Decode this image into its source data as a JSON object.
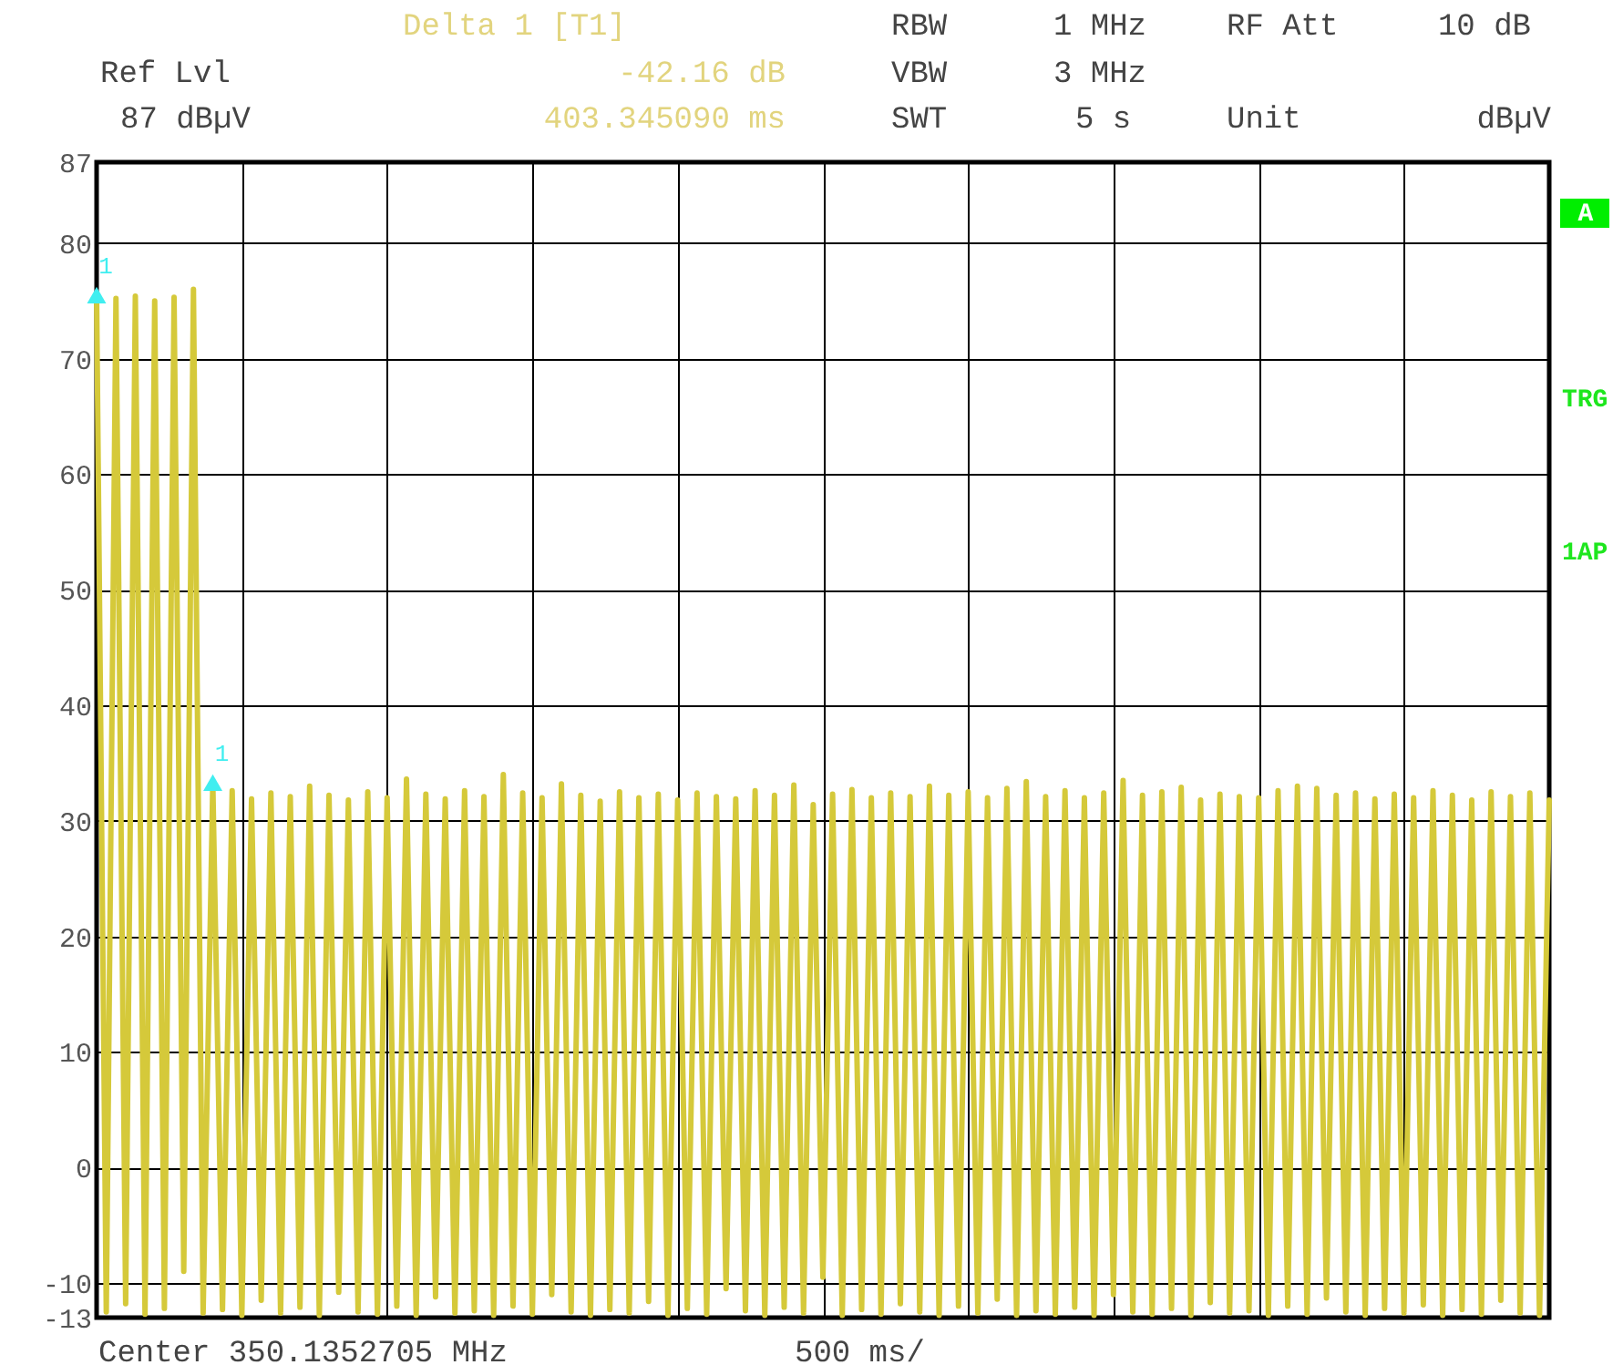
{
  "chart_data": {
    "type": "line",
    "categories": [
      null,
      null,
      null,
      null,
      null,
      null,
      null,
      null,
      null,
      null,
      null,
      null,
      null,
      null,
      null,
      null,
      null,
      null,
      null,
      null,
      null,
      null,
      null,
      null,
      null,
      null,
      null,
      null,
      null,
      null,
      null,
      null,
      null,
      null,
      null,
      null,
      null,
      null,
      null,
      null,
      null,
      null,
      null,
      null,
      null,
      null,
      null,
      null,
      null,
      null,
      null,
      null,
      null,
      null,
      null,
      null,
      null,
      null,
      null,
      null,
      null,
      null,
      null,
      null,
      null,
      null,
      null,
      null,
      null,
      null,
      null,
      null,
      null,
      null,
      null,
      null,
      null,
      null,
      null,
      null,
      null,
      null,
      null,
      null,
      null,
      null,
      null,
      null,
      null,
      null,
      null,
      null,
      null,
      null,
      null,
      null,
      null,
      null,
      null,
      null,
      null,
      null,
      null,
      null,
      null,
      null,
      null,
      null,
      null,
      null,
      null,
      null,
      null,
      null,
      null,
      null,
      null,
      null,
      null,
      null,
      null,
      null,
      null,
      null,
      null,
      null,
      null,
      null,
      null,
      null,
      null,
      null,
      null,
      null,
      null,
      null,
      null,
      null,
      null,
      null,
      null,
      null,
      null,
      null,
      null,
      null,
      null,
      null,
      null,
      null,
      null
    ],
    "ylim": [
      -13,
      87
    ],
    "yticks": [
      87,
      80,
      70,
      60,
      50,
      40,
      30,
      20,
      10,
      0,
      -10,
      -13
    ],
    "grid": true,
    "tick_labels": "y",
    "annotations": [
      "Delta 1 [T1]",
      "RBW",
      "1 MHz",
      "RF Att",
      "10 dB",
      "Ref Lvl",
      "-42.16 dB",
      "VBW",
      "3 MHz",
      "87 dBµV",
      "403.345090 ms",
      "SWT",
      "5 s",
      "Unit",
      "dBµV",
      "A",
      "TRG",
      "1AP",
      "Center 350.1352705 MHz",
      "500 ms/"
    ],
    "series": [
      {
        "color": "#d5c93a",
        "line_style": "solid",
        "values": [
          75.5,
          -12.5,
          75.2,
          -11.8,
          75.4,
          -12.7,
          75.0,
          -12.2,
          75.3,
          -9.0,
          76.0,
          -12.6,
          33.3,
          -12.3,
          32.6,
          -12.8,
          31.9,
          -11.5,
          32.4,
          -12.6,
          32.1,
          -12.1,
          33.0,
          -12.8,
          32.2,
          -10.8,
          31.8,
          -12.5,
          32.5,
          -12.7,
          32.0,
          -12.0,
          33.6,
          -12.8,
          32.3,
          -11.2,
          31.9,
          -12.6,
          32.6,
          -12.4,
          32.1,
          -12.8,
          34.0,
          -12.0,
          32.4,
          -12.7,
          32.0,
          -11.0,
          33.2,
          -12.5,
          32.2,
          -12.8,
          31.7,
          -12.3,
          32.5,
          -12.6,
          32.0,
          -11.6,
          32.3,
          -12.8,
          31.8,
          -12.2,
          32.4,
          -12.7,
          32.1,
          -10.5,
          31.9,
          -12.4,
          32.6,
          -12.8,
          32.2,
          -12.1,
          33.1,
          -12.6,
          31.4,
          -9.5,
          32.3,
          -12.8,
          32.7,
          -12.3,
          32.0,
          -12.7,
          32.4,
          -11.8,
          32.1,
          -12.5,
          33.0,
          -12.8,
          32.2,
          -12.0,
          32.5,
          -12.6,
          32.0,
          -11.4,
          32.8,
          -12.8,
          33.4,
          -12.4,
          32.1,
          -12.7,
          32.6,
          -12.1,
          32.0,
          -12.8,
          32.4,
          -11.0,
          33.5,
          -12.5,
          32.2,
          -12.7,
          32.5,
          -12.2,
          32.9,
          -12.8,
          31.8,
          -11.7,
          32.3,
          -12.6,
          32.1,
          -12.4,
          32.0,
          -12.8,
          32.6,
          -12.0,
          33.0,
          -12.7,
          32.8,
          -11.3,
          32.2,
          -12.5,
          32.4,
          -12.8,
          31.9,
          -12.2,
          32.3,
          -12.6,
          32.0,
          -11.9,
          32.6,
          -12.8,
          32.2,
          -12.3,
          31.8,
          -12.7,
          32.5,
          -11.5,
          32.1,
          -12.6,
          32.4,
          -12.8,
          31.8
        ]
      },
      {
        "type": "scatter",
        "name": "1",
        "color": "#40eef0",
        "marker": "triangle",
        "values": [
          75.5,
          null,
          null,
          null,
          null,
          null,
          null,
          null,
          null,
          null,
          null,
          null,
          null,
          null,
          null,
          null,
          null,
          null,
          null,
          null,
          null,
          null,
          null,
          null,
          null,
          null,
          null,
          null,
          null,
          null,
          null,
          null,
          null,
          null,
          null,
          null,
          null,
          null,
          null,
          null,
          null,
          null,
          null,
          null,
          null,
          null,
          null,
          null,
          null,
          null,
          null,
          null,
          null,
          null,
          null,
          null,
          null,
          null,
          null,
          null,
          null,
          null,
          null,
          null,
          null,
          null,
          null,
          null,
          null,
          null,
          null,
          null,
          null,
          null,
          null,
          null,
          null,
          null,
          null,
          null,
          null,
          null,
          null,
          null,
          null,
          null,
          null,
          null,
          null,
          null,
          null,
          null,
          null,
          null,
          null,
          null,
          null,
          null,
          null,
          null,
          null,
          null,
          null,
          null,
          null,
          null,
          null,
          null,
          null,
          null,
          null,
          null,
          null,
          null,
          null,
          null,
          null,
          null,
          null,
          null,
          null,
          null,
          null,
          null,
          null,
          null,
          null,
          null,
          null,
          null,
          null,
          null,
          null,
          null,
          null,
          null,
          null,
          null,
          null,
          null,
          null,
          null,
          null,
          null,
          null,
          null,
          null,
          null,
          null,
          null,
          null
        ]
      },
      {
        "type": "scatter",
        "name": "1",
        "color": "#40eef0",
        "marker": "triangle",
        "values": [
          null,
          null,
          null,
          null,
          null,
          null,
          null,
          null,
          null,
          null,
          null,
          null,
          33.3,
          null,
          null,
          null,
          null,
          null,
          null,
          null,
          null,
          null,
          null,
          null,
          null,
          null,
          null,
          null,
          null,
          null,
          null,
          null,
          null,
          null,
          null,
          null,
          null,
          null,
          null,
          null,
          null,
          null,
          null,
          null,
          null,
          null,
          null,
          null,
          null,
          null,
          null,
          null,
          null,
          null,
          null,
          null,
          null,
          null,
          null,
          null,
          null,
          null,
          null,
          null,
          null,
          null,
          null,
          null,
          null,
          null,
          null,
          null,
          null,
          null,
          null,
          null,
          null,
          null,
          null,
          null,
          null,
          null,
          null,
          null,
          null,
          null,
          null,
          null,
          null,
          null,
          null,
          null,
          null,
          null,
          null,
          null,
          null,
          null,
          null,
          null,
          null,
          null,
          null,
          null,
          null,
          null,
          null,
          null,
          null,
          null,
          null,
          null,
          null,
          null,
          null,
          null,
          null,
          null,
          null,
          null,
          null,
          null,
          null,
          null,
          null,
          null,
          null,
          null,
          null,
          null,
          null,
          null,
          null,
          null,
          null,
          null,
          null,
          null,
          null,
          null,
          null,
          null,
          null,
          null,
          null,
          null,
          null,
          null,
          null,
          null,
          null
        ]
      }
    ]
  }
}
